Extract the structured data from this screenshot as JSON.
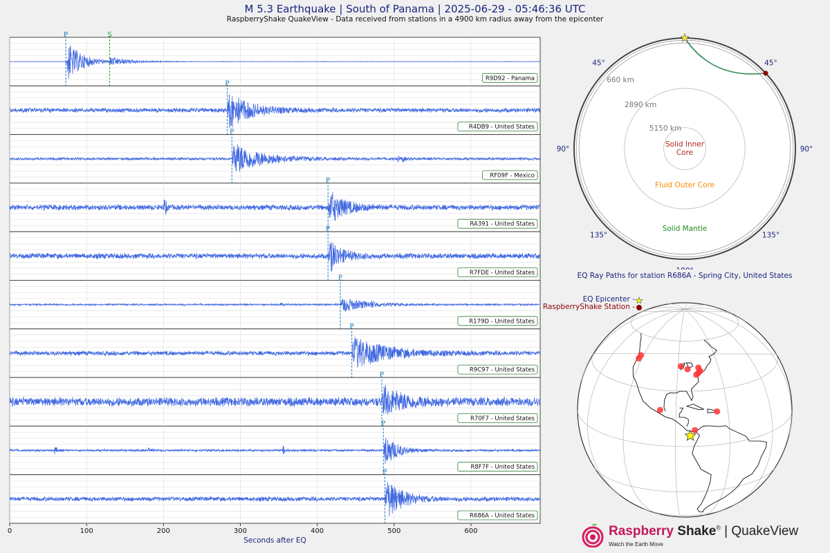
{
  "header": {
    "title": "M 5.3 Earthquake | South of Panama | 2025-06-29 - 05:46:36 UTC",
    "subtitle": "RaspberryShake QuakeView - Data received from stations in a 4900 km radius away from the epicenter"
  },
  "chart_data": [
    {
      "type": "line",
      "name": "seismograms",
      "xlabel": "Seconds after EQ",
      "xlim": [
        0,
        690
      ],
      "xticks": [
        0,
        100,
        200,
        300,
        400,
        500,
        600
      ],
      "grid": true,
      "color": "#4169e1",
      "traces": [
        {
          "label": "R9D92 - Panama",
          "p": 73,
          "s": 130,
          "noise": 0.01,
          "amp": 0.95,
          "decay": 20,
          "extra": []
        },
        {
          "label": "R4DB9 - United States",
          "p": 283,
          "noise": 0.1,
          "amp": 0.9,
          "decay": 25,
          "extra": []
        },
        {
          "label": "RF09F - Mexico",
          "p": 289,
          "noise": 0.06,
          "amp": 0.75,
          "decay": 35,
          "extra": [
            [
              510,
              0.12
            ],
            [
              505,
              0.1
            ]
          ]
        },
        {
          "label": "RA391 - United States",
          "p": 414,
          "noise": 0.12,
          "amp": 0.75,
          "decay": 20,
          "extra": [
            [
              200,
              0.5
            ]
          ]
        },
        {
          "label": "R7FDE - United States",
          "p": 414,
          "noise": 0.12,
          "amp": 0.8,
          "decay": 15,
          "extra": []
        },
        {
          "label": "R179D - United States",
          "p": 430,
          "noise": 0.04,
          "amp": 0.35,
          "decay": 30,
          "extra": [
            [
              352,
              0.06
            ],
            [
              470,
              0.12
            ]
          ]
        },
        {
          "label": "R9C97 - United States",
          "p": 445,
          "noise": 0.1,
          "amp": 0.75,
          "decay": 40,
          "extra": []
        },
        {
          "label": "R70F7 - United States",
          "p": 484,
          "noise": 0.2,
          "amp": 0.65,
          "decay": 25,
          "extra": []
        },
        {
          "label": "R8F7F - United States",
          "p": 486,
          "noise": 0.05,
          "amp": 0.85,
          "decay": 15,
          "extra": [
            [
              58,
              0.18
            ],
            [
              180,
              0.1
            ],
            [
              355,
              0.2
            ]
          ]
        },
        {
          "label": "R686A - United States",
          "p": 488,
          "noise": 0.1,
          "amp": 0.95,
          "decay": 20,
          "extra": []
        }
      ],
      "phase_labels": {
        "p": "P",
        "s": "S"
      }
    },
    {
      "type": "polar",
      "name": "ray-paths",
      "title": "EQ Ray Paths for station R686A - Spring City, United States",
      "angle_labels": [
        {
          "deg": -45,
          "text": "45°"
        },
        {
          "deg": 45,
          "text": "45°"
        },
        {
          "deg": -90,
          "text": "90°"
        },
        {
          "deg": 90,
          "text": "90°"
        },
        {
          "deg": -135,
          "text": "135°"
        },
        {
          "deg": 135,
          "text": "135°"
        },
        {
          "deg": 180,
          "text": "180°"
        }
      ],
      "depth_labels": [
        "660 km",
        "2890 km",
        "5150 km"
      ],
      "regions": {
        "inner": "Solid Inner\nCore",
        "outer": "Fluid Outer Core",
        "mantle": "Solid Mantle"
      },
      "station_deg": 47,
      "ray_color": "#2e8b57"
    },
    {
      "type": "map",
      "name": "globe",
      "legend": {
        "epicenter": "EQ Epicenter -",
        "station": "RaspberryShake Station -"
      },
      "epicenter": {
        "lat": 6.0,
        "lon": -82.0
      },
      "stations": [
        {
          "lat": 9.0,
          "lon": -79.5
        },
        {
          "lat": 19.4,
          "lon": -99.1
        },
        {
          "lat": 18.2,
          "lon": -66.5
        },
        {
          "lat": 40.0,
          "lon": -75.5
        },
        {
          "lat": 41.0,
          "lon": -74.0
        },
        {
          "lat": 42.3,
          "lon": -83.0
        },
        {
          "lat": 44.0,
          "lon": -88.0
        },
        {
          "lat": 47.6,
          "lon": -122.3
        },
        {
          "lat": 45.5,
          "lon": -122.7
        },
        {
          "lat": 39.0,
          "lon": -77.0
        },
        {
          "lat": 43.0,
          "lon": -75.0
        }
      ]
    }
  ],
  "brand": {
    "name_red": "Raspberry",
    "name_dark": "Shake",
    "reg": "®",
    "sep": " | ",
    "product": "QuakeView",
    "tagline": "Watch the Earth Move"
  }
}
